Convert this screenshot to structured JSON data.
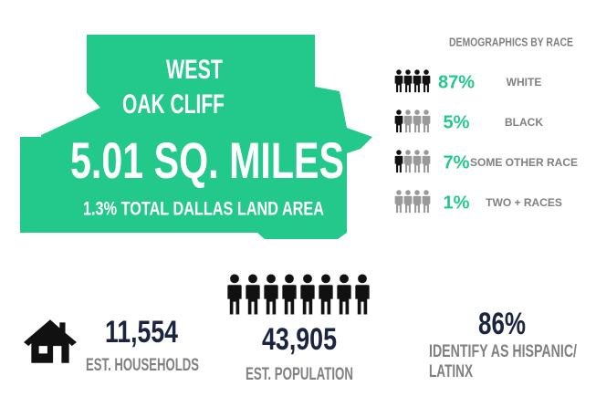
{
  "area": {
    "title_lines": [
      "WEST",
      "OAK CLIFF"
    ],
    "size": "5.01 SQ. MILES",
    "share": "1.3% TOTAL DALLAS LAND AREA"
  },
  "demographics": {
    "title": "DEMOGRAPHICS BY RACE",
    "rows": [
      {
        "percent": "87%",
        "label": "WHITE"
      },
      {
        "percent": "5%",
        "label": "BLACK"
      },
      {
        "percent": "7%",
        "label": "SOME OTHER RACE"
      },
      {
        "percent": "1%",
        "label": "TWO + RACES"
      }
    ]
  },
  "stats": {
    "households": {
      "value": "11,554",
      "label": "EST. HOUSEHOLDS"
    },
    "population": {
      "value": "43,905",
      "label": "EST. POPULATION"
    },
    "hispanic": {
      "value": "86%",
      "label_lines": [
        "IDENTIFY AS HISPANIC/",
        "LATINX"
      ]
    }
  }
}
